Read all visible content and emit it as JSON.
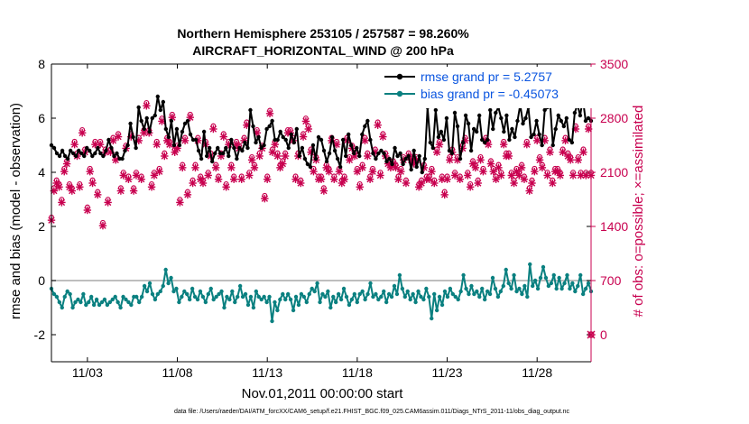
{
  "chart_data": {
    "type": "line",
    "title": "Northern Hemisphere 253105 / 257587 = 98.260%",
    "subtitle": "AIRCRAFT_HORIZONTAL_WIND @ 200 hPa",
    "xlabel": "Nov.01,2011 00:00:00 start",
    "ylabel": "rmse and bias (model - observation)",
    "y2label": "# of obs: o=possible; ×=assimilated",
    "footer": "data file: /Users/raeder/DAI/ATM_forcXX/CAM6_setup/f.e21.FHIST_BGC.f09_025.CAM6assim.011/Diags_NTrS_2011-11/obs_diag_output.nc",
    "x_tick_labels": [
      "11/03",
      "11/08",
      "11/13",
      "11/18",
      "11/23",
      "11/28"
    ],
    "x_tick_values": [
      3,
      8,
      13,
      18,
      23,
      28
    ],
    "xlim": [
      1.0,
      31.0
    ],
    "ylim": [
      -3,
      8
    ],
    "y_ticks": [
      -2,
      0,
      2,
      4,
      6,
      8
    ],
    "y2lim": [
      -350,
      3500
    ],
    "y2_ticks": [
      0,
      700,
      1400,
      2100,
      2800,
      3500
    ],
    "legend_location": "top-right",
    "series": [
      {
        "name": "rmse grand pr = 5.2757",
        "color": "#000000",
        "axis": "left",
        "values": [
          5.0,
          4.9,
          4.7,
          4.6,
          4.8,
          4.6,
          4.5,
          4.8,
          4.7,
          4.6,
          4.8,
          4.7,
          4.6,
          4.9,
          4.8,
          4.6,
          4.7,
          4.9,
          4.7,
          4.6,
          4.8,
          5.2,
          4.9,
          4.6,
          4.7,
          4.5,
          4.5,
          4.8,
          5.0,
          5.8,
          5.3,
          4.9,
          6.4,
          5.9,
          5.6,
          6.0,
          5.5,
          6.0,
          6.1,
          6.8,
          6.3,
          6.6,
          5.6,
          5.3,
          5.9,
          5.0,
          5.6,
          5.0,
          5.5,
          5.8,
          5.9,
          5.4,
          5.2,
          5.2,
          4.8,
          4.5,
          5.5,
          4.6,
          4.9,
          4.4,
          4.7,
          4.9,
          4.7,
          4.7,
          4.9,
          4.6,
          5.2,
          4.9,
          4.5,
          4.9,
          4.8,
          5.1,
          4.9,
          6.3,
          5.7,
          5.1,
          5.3,
          4.9,
          5.0,
          5.6,
          5.7,
          5.9,
          5.2,
          5.2,
          5.5,
          5.3,
          5.2,
          4.9,
          5.4,
          5.1,
          5.6,
          4.6,
          4.9,
          4.5,
          4.3,
          4.2,
          5.0,
          4.5,
          5.3,
          5.2,
          4.8,
          4.4,
          4.7,
          5.3,
          4.8,
          4.5,
          4.2,
          5.2,
          4.6,
          5.4,
          5.0,
          4.7,
          4.9,
          4.6,
          5.4,
          5.7,
          5.9,
          5.2,
          4.7,
          4.5,
          4.7,
          4.8,
          4.7,
          4.4,
          4.5,
          4.3,
          4.9,
          4.6,
          4.7,
          4.3,
          4.5,
          4.6,
          4.1,
          4.8,
          4.2,
          4.6,
          4.0,
          4.5,
          6.4,
          5.1,
          4.9,
          6.3,
          5.3,
          5.5,
          5.2,
          6.0,
          4.8,
          4.7,
          6.2,
          5.7,
          4.5,
          5.1,
          6.1,
          5.8,
          4.8,
          5.6,
          5.5,
          6.1,
          5.2,
          5.1,
          5.2,
          6.3,
          5.6,
          6.2,
          6.4,
          6.0,
          5.5,
          6.1,
          5.2,
          5.6,
          5.3,
          5.9,
          6.5,
          5.8,
          6.0,
          6.4,
          5.3,
          5.4,
          5.9,
          5.4,
          5.0,
          6.3,
          6.4,
          6.5,
          5.0,
          5.6,
          6.1,
          5.9,
          5.7,
          6.0,
          5.2,
          5.1,
          6.2,
          6.5,
          6.1,
          6.7,
          5.9,
          6.0,
          5.9
        ]
      },
      {
        "name": "bias grand pr = -0.45073",
        "color": "#0a8080",
        "axis": "left",
        "values": [
          -0.3,
          -0.5,
          -0.6,
          -0.8,
          -1.0,
          -0.6,
          -0.4,
          -0.5,
          -1.0,
          -0.8,
          -0.7,
          -0.8,
          -0.5,
          -0.9,
          -0.8,
          -0.6,
          -0.9,
          -0.7,
          -0.9,
          -0.8,
          -0.7,
          -0.9,
          -0.8,
          -0.7,
          -0.6,
          -0.8,
          -1.0,
          -0.6,
          -0.7,
          -0.8,
          -0.9,
          -0.6,
          -0.6,
          -0.8,
          -0.6,
          -0.2,
          -0.4,
          -0.1,
          -0.5,
          -0.7,
          -0.5,
          -0.4,
          -0.2,
          0.4,
          -0.1,
          0.1,
          -0.4,
          -0.3,
          -0.8,
          -0.6,
          -0.4,
          -0.5,
          -0.7,
          -0.3,
          -0.6,
          -0.7,
          -0.4,
          -0.6,
          -0.8,
          -0.5,
          -0.3,
          -0.7,
          -0.6,
          -0.5,
          -0.4,
          -1.0,
          -0.6,
          -0.7,
          -0.4,
          -0.8,
          -0.6,
          -0.2,
          -0.6,
          -0.5,
          -0.9,
          -0.6,
          -1.0,
          -0.4,
          -0.6,
          -0.7,
          -0.6,
          -0.8,
          -0.6,
          -1.5,
          -0.8,
          -1.1,
          -0.7,
          -0.5,
          -0.7,
          -0.5,
          -0.7,
          -1.1,
          -0.6,
          -0.9,
          -0.5,
          -0.6,
          -0.8,
          -0.5,
          -0.3,
          -0.4,
          -0.1,
          -0.8,
          -0.5,
          -0.6,
          -0.4,
          -1.0,
          -0.6,
          -0.8,
          -0.5,
          -0.7,
          -0.3,
          -0.6,
          -0.9,
          -0.7,
          -0.5,
          -0.8,
          -0.5,
          -0.4,
          -0.7,
          -0.5,
          -0.1,
          -0.6,
          -0.5,
          -0.7,
          -0.6,
          -0.4,
          -0.8,
          -0.5,
          -0.6,
          -0.2,
          -0.5,
          0.2,
          -0.3,
          -0.6,
          -0.4,
          -0.7,
          -0.5,
          -0.8,
          -0.4,
          -0.6,
          -0.7,
          -0.3,
          -0.6,
          -1.4,
          -0.5,
          -1.1,
          -0.6,
          -0.9,
          -0.4,
          -0.6,
          -0.3,
          -0.5,
          -0.6,
          -0.7,
          -0.4,
          0.2,
          -0.3,
          -0.5,
          -0.2,
          -0.5,
          -0.4,
          -0.6,
          -0.3,
          -0.7,
          -0.4,
          -0.5,
          0.1,
          -0.3,
          -0.6,
          -0.4,
          -0.2,
          0.4,
          -0.1,
          -0.3,
          0.2,
          -0.4,
          -0.3,
          -0.5,
          -0.2,
          -0.6,
          0.6,
          -0.2,
          0.0,
          -0.3,
          0.1,
          0.5,
          0.1,
          -0.2,
          -0.1,
          0.2,
          -0.3,
          0.1,
          -0.3,
          -0.1,
          0.2,
          -0.3,
          -0.1,
          -0.4,
          -0.2,
          0.2,
          -0.5,
          -0.3,
          -0.1,
          -0.4
        ]
      },
      {
        "name": "possible",
        "marker": "o",
        "color": "#c8004f",
        "axis": "right",
        "values": [
          1520,
          1900,
          2000,
          1950,
          1750,
          2150,
          2250,
          1950,
          1900,
          2500,
          2350,
          1950,
          2650,
          2400,
          1650,
          2150,
          2000,
          2500,
          1850,
          2500,
          1450,
          2400,
          1750,
          2400,
          2550,
          2300,
          2600,
          1900,
          2100,
          2450,
          2050,
          2600,
          1900,
          2100,
          2550,
          2050,
          2650,
          3000,
          2650,
          1950,
          2100,
          2500,
          2150,
          2800,
          2350,
          2550,
          2500,
          2850,
          2400,
          2450,
          1750,
          2200,
          2550,
          1850,
          2850,
          2000,
          2200,
          2550,
          2050,
          2000,
          2500,
          2100,
          2350,
          2700,
          2200,
          2050,
          2350,
          2600,
          1950,
          2500,
          2200,
          2050,
          2500,
          2450,
          2050,
          2550,
          2750,
          2100,
          2300,
          2200,
          2650,
          2350,
          2450,
          1800,
          2050,
          2900,
          2400,
          2500,
          2350,
          2200,
          2250,
          2350,
          2650,
          2650,
          2550,
          2050,
          2350,
          2000,
          2600,
          2800,
          2700,
          2400,
          2150,
          2300,
          2050,
          2050,
          1900,
          2200,
          2150,
          2550,
          2050,
          2500,
          2150,
          2000,
          2050,
          2550,
          2300,
          2450,
          2350,
          2150,
          1950,
          2200,
          2550,
          2350,
          2050,
          2150,
          2400,
          2750,
          2100,
          2600,
          2350,
          2250,
          2200,
          2250,
          2200,
          2050,
          2150,
          2300,
          2000,
          2350,
          2300,
          2250,
          2300,
          1950,
          2000,
          2200,
          2050,
          2050,
          2150,
          2000,
          2400,
          2500,
          2050,
          1850,
          2050,
          2300,
          2400,
          2100,
          2300,
          2050,
          2450,
          2550,
          2100,
          1950,
          2250,
          2200,
          2000,
          2300,
          2150,
          2550,
          2500,
          2250,
          2150,
          2050,
          2200,
          2100,
          2500,
          2350,
          2350,
          2100,
          2000,
          2150,
          2100,
          2200,
          2050,
          2500,
          1900,
          2000,
          2150,
          2550,
          2300,
          2200,
          2550,
          2100,
          2400,
          2000,
          2150,
          2150,
          2100,
          2400,
          2550,
          2350,
          2300,
          2100,
          2700,
          2300,
          2100,
          2400,
          2100,
          2700,
          2100
        ]
      },
      {
        "name": "assimilated",
        "marker": "*",
        "color": "#c8004f",
        "axis": "right",
        "values": [
          1480,
          1860,
          1960,
          1910,
          1710,
          2110,
          2210,
          1910,
          1860,
          2460,
          2310,
          1910,
          2610,
          2360,
          1610,
          2110,
          1960,
          2460,
          1810,
          2460,
          1410,
          2360,
          1710,
          2360,
          2510,
          2260,
          2560,
          1860,
          2060,
          2410,
          2010,
          2560,
          1860,
          2060,
          2510,
          2010,
          2610,
          2960,
          2610,
          1910,
          2060,
          2460,
          2110,
          2760,
          2310,
          2510,
          2460,
          2810,
          2360,
          2410,
          1710,
          2160,
          2510,
          1810,
          2810,
          1960,
          2160,
          2510,
          2010,
          1960,
          2460,
          2060,
          2310,
          2660,
          2160,
          2010,
          2310,
          2560,
          1910,
          2460,
          2160,
          2010,
          2460,
          2410,
          2010,
          2510,
          2710,
          2060,
          2260,
          2160,
          2610,
          2310,
          2410,
          1760,
          2010,
          2860,
          2360,
          2460,
          2310,
          2160,
          2210,
          2310,
          2610,
          2610,
          2510,
          2010,
          2310,
          1960,
          2560,
          2760,
          2660,
          2360,
          2110,
          2260,
          2010,
          2010,
          1860,
          2160,
          2110,
          2510,
          2010,
          2460,
          2110,
          1960,
          2010,
          2510,
          2260,
          2410,
          2310,
          2110,
          1910,
          2160,
          2510,
          2310,
          2010,
          2110,
          2360,
          2710,
          2060,
          2560,
          2310,
          2210,
          2160,
          2210,
          2160,
          2010,
          2110,
          2260,
          1960,
          2310,
          2260,
          2210,
          2260,
          1910,
          1960,
          2160,
          2010,
          2010,
          2110,
          1960,
          2360,
          2460,
          2010,
          1810,
          2010,
          2260,
          2360,
          2060,
          2260,
          2010,
          2410,
          2510,
          2060,
          1910,
          2210,
          2160,
          1960,
          2260,
          2110,
          2510,
          2460,
          2210,
          2110,
          2010,
          2160,
          2060,
          2460,
          2310,
          2310,
          2060,
          1960,
          2110,
          2060,
          2160,
          2010,
          2460,
          1860,
          1960,
          2110,
          2510,
          2260,
          2160,
          2510,
          2060,
          2360,
          1960,
          2110,
          2110,
          2060,
          2360,
          2510,
          2310,
          2260,
          2060,
          2660,
          2260,
          2060,
          2360,
          2060,
          2660,
          2060
        ]
      }
    ],
    "extra_markers": [
      {
        "name": "possible-zero",
        "x": 31.0,
        "y2": 0
      }
    ]
  },
  "legend": {
    "rmse": "rmse grand pr = 5.2757",
    "bias": "bias grand pr = -0.45073"
  }
}
